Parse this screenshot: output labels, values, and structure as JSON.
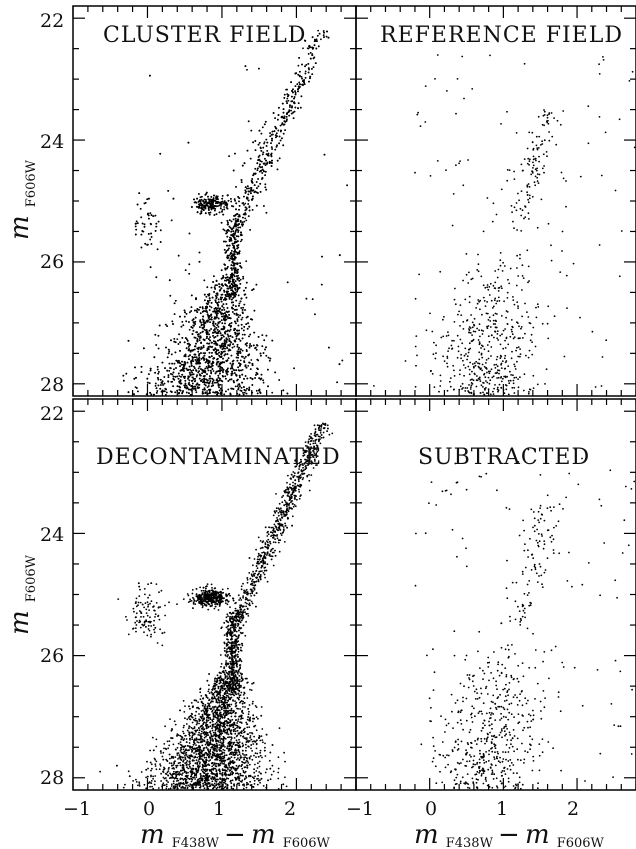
{
  "chart_data": [
    {
      "type": "scatter",
      "panel": "top-left",
      "title": "CLUSTER FIELD",
      "xlabel": "m F438W − m F606W",
      "ylabel": "m F606W",
      "xlim": [
        -1,
        2.8
      ],
      "ylim": [
        28.2,
        21.8
      ],
      "y_inverted": true,
      "xticks": [
        -1,
        0,
        1,
        2
      ],
      "yticks": [
        22,
        24,
        26,
        28
      ],
      "features": {
        "red_giant_branch": [
          [
            1.2,
            25.2
          ],
          [
            1.4,
            24.5
          ],
          [
            1.6,
            23.9
          ],
          [
            1.9,
            23.3
          ],
          [
            2.2,
            22.7
          ],
          [
            2.45,
            22.2
          ]
        ],
        "red_clump": {
          "x": 0.75,
          "y": 25.05
        },
        "horizontal_branch_blue": {
          "x": 0.05,
          "y": 25.2
        },
        "main_sequence_turnoff": [
          [
            1.15,
            25.6
          ],
          [
            1.1,
            26.3
          ],
          [
            1.05,
            27.0
          ],
          [
            0.95,
            27.6
          ],
          [
            0.75,
            28.1
          ]
        ]
      },
      "point_count_estimate": 5000
    },
    {
      "type": "scatter",
      "panel": "top-right",
      "title": "REFERENCE FIELD",
      "xlabel": "",
      "ylabel": "",
      "xlim": [
        -1,
        2.8
      ],
      "ylim": [
        28.2,
        21.8
      ],
      "y_inverted": true,
      "point_count_estimate": 700
    },
    {
      "type": "scatter",
      "panel": "bottom-left",
      "title": "DECONTAMINATED",
      "xlabel": "m F438W − m F606W",
      "ylabel": "m F606W",
      "xlim": [
        -1,
        2.8
      ],
      "ylim": [
        28.2,
        21.8
      ],
      "y_inverted": true,
      "point_count_estimate": 4400
    },
    {
      "type": "scatter",
      "panel": "bottom-right",
      "title": "SUBTRACTED",
      "xlabel": "m F438W − m F606W",
      "ylabel": "",
      "xlim": [
        -1,
        2.8
      ],
      "ylim": [
        28.2,
        21.8
      ],
      "y_inverted": true,
      "point_count_estimate": 700
    }
  ],
  "labels": {
    "tl_title": "CLUSTER FIELD",
    "tr_title": "REFERENCE FIELD",
    "bl_title": "DECONTAMINATED",
    "br_title": "SUBTRACTED",
    "y_axis_main": "m",
    "y_axis_sub": "F606W",
    "x_axis_m1": "m",
    "x_axis_s1": "F438W",
    "x_axis_minus": "−",
    "x_axis_m2": "m",
    "x_axis_s2": "F606W",
    "y_tick_22": "22",
    "y_tick_24": "24",
    "y_tick_26": "26",
    "y_tick_28": "28",
    "x_tick_m1": "−1",
    "x_tick_0": "0",
    "x_tick_1": "1",
    "x_tick_2": "2"
  }
}
